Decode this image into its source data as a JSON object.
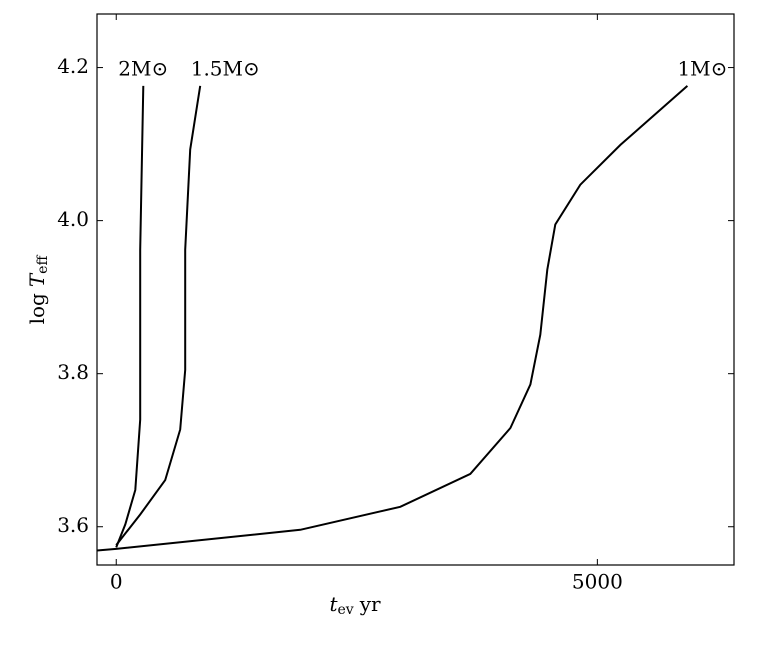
{
  "chart_data": {
    "type": "line",
    "x_label": {
      "symbol": "t",
      "subscript": "ev",
      "unit": "yr"
    },
    "y_label": {
      "prefix": "log",
      "symbol": "T",
      "subscript": "eff"
    },
    "xlim": [
      -200,
      6420
    ],
    "ylim": [
      3.55,
      4.27
    ],
    "xticks": [
      0,
      5000
    ],
    "yticks": [
      3.6,
      3.8,
      {
        "value": 4,
        "label": "4.0"
      },
      4.2
    ],
    "series": [
      {
        "name": "2M⊙",
        "color": "#000000",
        "x": [
          0,
          94,
          198,
          249,
          249,
          281
        ],
        "values": [
          3.573,
          3.603,
          3.648,
          3.74,
          3.962,
          4.176
        ]
      },
      {
        "name": "1.5M⊙",
        "color": "#000000",
        "x": [
          0,
          249,
          509,
          665,
          717,
          717,
          769,
          873
        ],
        "values": [
          3.576,
          3.616,
          3.661,
          3.727,
          3.805,
          3.962,
          4.093,
          4.176
        ]
      },
      {
        "name": "1M⊙",
        "color": "#000000",
        "x": [
          -200,
          0,
          1913,
          2952,
          3680,
          4096,
          4304,
          4407,
          4480,
          4563,
          4823,
          5239,
          5936
        ],
        "values": [
          3.569,
          3.571,
          3.596,
          3.626,
          3.669,
          3.729,
          3.786,
          3.851,
          3.936,
          3.995,
          4.047,
          4.099,
          4.176
        ]
      }
    ]
  }
}
